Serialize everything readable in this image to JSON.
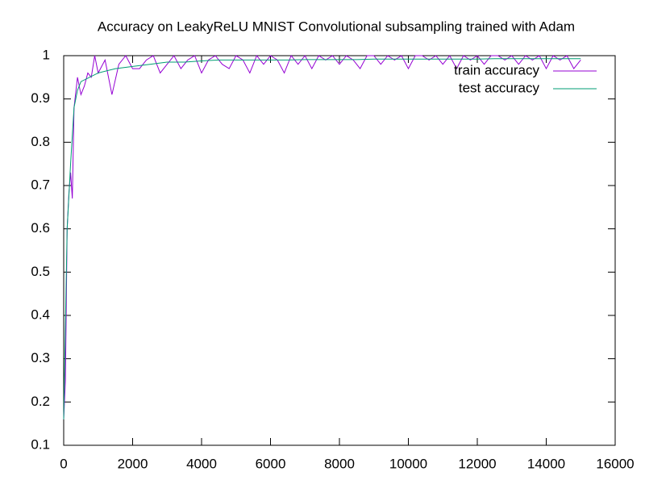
{
  "chart_data": {
    "type": "line",
    "title": "Accuracy on LeakyReLU MNIST Convolutional subsampling trained with Adam",
    "series": [
      {
        "name": "train accuracy",
        "color": "#9400d3",
        "x": [
          0,
          50,
          100,
          150,
          200,
          250,
          300,
          400,
          500,
          600,
          700,
          800,
          900,
          1000,
          1200,
          1400,
          1600,
          1800,
          2000,
          2200,
          2400,
          2600,
          2800,
          3000,
          3200,
          3400,
          3600,
          3800,
          4000,
          4200,
          4400,
          4600,
          4800,
          5000,
          5200,
          5400,
          5600,
          5800,
          6000,
          6200,
          6400,
          6600,
          6800,
          7000,
          7200,
          7400,
          7600,
          7800,
          8000,
          8200,
          8400,
          8600,
          8800,
          9000,
          9200,
          9400,
          9600,
          9800,
          10000,
          10200,
          10400,
          10600,
          10800,
          11000,
          11200,
          11400,
          11600,
          11800,
          12000,
          12200,
          12400,
          12600,
          12800,
          13000,
          13200,
          13400,
          13600,
          13800,
          14000,
          14200,
          14400,
          14600,
          14800,
          15000
        ],
        "values": [
          0.16,
          0.25,
          0.6,
          0.68,
          0.73,
          0.67,
          0.88,
          0.95,
          0.91,
          0.93,
          0.96,
          0.95,
          1,
          0.96,
          0.99,
          0.91,
          0.98,
          1,
          0.97,
          0.97,
          0.99,
          1,
          0.96,
          0.98,
          1,
          0.97,
          0.99,
          1,
          0.96,
          0.99,
          1,
          0.98,
          0.97,
          1,
          0.99,
          0.96,
          1,
          0.98,
          1,
          0.99,
          0.96,
          1,
          0.98,
          1,
          0.97,
          1,
          0.99,
          1,
          0.98,
          1,
          0.99,
          0.97,
          1,
          1,
          0.98,
          1,
          0.99,
          1,
          0.97,
          1,
          1,
          0.99,
          1,
          0.98,
          1,
          0.97,
          1,
          0.99,
          1,
          0.98,
          1,
          1,
          0.99,
          1,
          0.98,
          1,
          0.99,
          1,
          0.97,
          1,
          0.99,
          1,
          0.97,
          0.99
        ]
      },
      {
        "name": "test accuracy",
        "color": "#009e73",
        "x": [
          0,
          100,
          200,
          300,
          400,
          500,
          1000,
          1500,
          2000,
          2500,
          3000,
          3500,
          4000,
          4500,
          5000,
          5500,
          6000,
          6500,
          7000,
          7500,
          8000,
          8500,
          9000,
          9500,
          10000,
          10500,
          11000,
          11500,
          12000,
          12500,
          13000,
          13500,
          14000,
          14500,
          15000
        ],
        "values": [
          0.16,
          0.6,
          0.75,
          0.88,
          0.92,
          0.94,
          0.96,
          0.97,
          0.975,
          0.98,
          0.985,
          0.985,
          0.988,
          0.99,
          0.99,
          0.99,
          0.99,
          0.99,
          0.991,
          0.991,
          0.991,
          0.991,
          0.992,
          0.992,
          0.992,
          0.992,
          0.992,
          0.992,
          0.992,
          0.993,
          0.993,
          0.993,
          0.993,
          0.993,
          0.993
        ]
      }
    ],
    "xlim": [
      0,
      16000
    ],
    "xticks": [
      0,
      2000,
      4000,
      6000,
      8000,
      10000,
      12000,
      14000,
      16000
    ],
    "ylim": [
      0.1,
      1
    ],
    "yticks": [
      0.1,
      0.2,
      0.3,
      0.4,
      0.5,
      0.6,
      0.7,
      0.8,
      0.9,
      1
    ],
    "legend": "top-right"
  }
}
